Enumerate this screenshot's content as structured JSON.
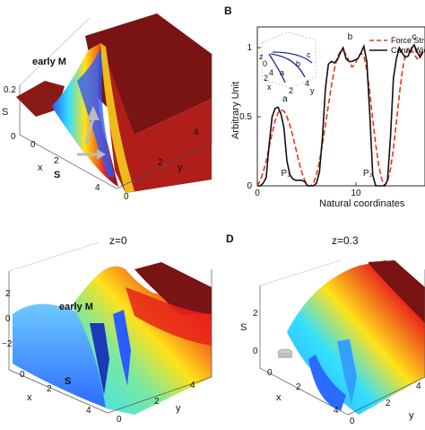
{
  "panels": {
    "a": {
      "letter": "",
      "z_label": "S",
      "x_label": "x",
      "y_label": "y",
      "z_ticks": [
        "0.2",
        "0"
      ],
      "x_ticks": [
        "0",
        "2",
        "4"
      ],
      "y_ticks": [
        "0",
        "2",
        "4"
      ],
      "annotations": {
        "early": "early M",
        "saddle": "S"
      }
    },
    "b": {
      "letter": "B",
      "x_label": "Natural coordinates",
      "y_label": "Arbitrary Unit",
      "inset": {
        "labels": [
          "z",
          "0",
          "4",
          "2",
          "x",
          "2",
          "4",
          "y",
          "a",
          "b",
          "c"
        ]
      }
    },
    "c": {
      "letter": "",
      "title": "z=0",
      "x_label": "x",
      "y_label": "y",
      "z_ticks": [
        "2",
        "0",
        "−2"
      ],
      "x_ticks": [
        "0",
        "2",
        "4"
      ],
      "y_ticks": [
        "0",
        "2",
        "4"
      ],
      "annotations": {
        "early": "early M",
        "saddle": "S"
      }
    },
    "d": {
      "letter": "D",
      "title": "z=0.3",
      "z_label": "S",
      "x_label": "x",
      "y_label": "y",
      "z_ticks": [
        "2",
        "0"
      ],
      "x_ticks": [
        "0",
        "2",
        "4"
      ],
      "y_ticks": [
        "0",
        "2",
        "4"
      ]
    }
  },
  "chart_data": [
    {
      "type": "surface",
      "panel": "A",
      "xlabel": "x",
      "ylabel": "y",
      "zlabel": "S",
      "zlim": [
        0,
        0.2
      ],
      "xlim": [
        0,
        4
      ],
      "ylim": [
        0,
        4
      ]
    },
    {
      "type": "line",
      "panel": "B",
      "xlabel": "Natural coordinates",
      "ylabel": "Arbitrary Unit",
      "xlim": [
        0,
        17
      ],
      "ylim": [
        0,
        1.15
      ],
      "xticks": [
        0,
        10
      ],
      "yticks": [
        0,
        0.5,
        1
      ],
      "legend": {
        "position": "top-right",
        "entries": [
          "Force Stre",
          "Canal Widt"
        ]
      },
      "peak_labels": [
        {
          "text": "a",
          "x": 2.8,
          "y": 0.61
        },
        {
          "text": "b",
          "x": 9.4,
          "y": 1.06
        },
        {
          "text": "c",
          "x": 15.9,
          "y": 1.06
        }
      ],
      "segment_labels": [
        {
          "text": "P₃",
          "x": 2.9,
          "y": 0.07
        },
        {
          "text": "P₂",
          "x": 11.2,
          "y": 0.07
        }
      ],
      "series": [
        {
          "name": "Force Stre",
          "color": "#e8341c",
          "style": "dashed",
          "x": [
            0,
            0.3,
            0.6,
            0.9,
            1.2,
            1.5,
            1.8,
            2.1,
            2.4,
            2.7,
            3.0,
            3.3,
            3.6,
            3.9,
            4.2,
            4.5,
            4.8,
            5.1,
            5.4,
            5.7,
            6.0,
            6.3,
            6.6,
            6.9,
            7.2,
            7.5,
            7.8,
            8.1,
            8.4,
            8.7,
            9.0,
            9.3,
            9.6,
            9.9,
            10.2,
            10.5,
            10.8,
            11.1,
            11.4,
            11.7,
            12.0,
            12.3,
            12.6,
            12.9,
            13.2,
            13.5,
            13.8,
            14.1,
            14.4,
            14.7,
            15.0,
            15.3,
            15.6,
            15.9,
            16.2,
            16.5,
            16.8
          ],
          "y": [
            0.0,
            0.04,
            0.1,
            0.18,
            0.28,
            0.38,
            0.47,
            0.53,
            0.55,
            0.54,
            0.5,
            0.44,
            0.36,
            0.27,
            0.18,
            0.1,
            0.04,
            0.0,
            0.0,
            0.02,
            0.08,
            0.18,
            0.3,
            0.44,
            0.58,
            0.72,
            0.84,
            0.93,
            0.97,
            0.98,
            0.95,
            0.9,
            0.86,
            0.88,
            0.93,
            0.96,
            0.94,
            0.84,
            0.68,
            0.48,
            0.3,
            0.15,
            0.05,
            0.0,
            0.03,
            0.12,
            0.27,
            0.46,
            0.66,
            0.83,
            0.95,
            1.0,
            0.99,
            0.95,
            0.92,
            0.95,
            0.98
          ]
        },
        {
          "name": "Canal Widt",
          "color": "#111111",
          "style": "solid",
          "x": [
            0,
            0.3,
            0.6,
            0.9,
            1.2,
            1.5,
            1.8,
            2.1,
            2.4,
            2.7,
            3.0,
            3.3,
            3.6,
            3.9,
            4.2,
            4.5,
            4.8,
            5.1,
            5.4,
            5.7,
            6.0,
            6.3,
            6.6,
            6.9,
            7.2,
            7.5,
            7.8,
            8.1,
            8.4,
            8.7,
            9.0,
            9.3,
            9.6,
            9.9,
            10.2,
            10.5,
            10.8,
            11.1,
            11.4,
            11.7,
            12.0,
            12.3,
            12.6,
            12.9,
            13.2,
            13.5,
            13.8,
            14.1,
            14.4,
            14.7,
            15.0,
            15.3,
            15.6,
            15.9,
            16.2,
            16.5,
            16.8
          ],
          "y": [
            0.0,
            0.0,
            0.02,
            0.06,
            0.3,
            0.5,
            0.56,
            0.57,
            0.52,
            0.42,
            0.18,
            0.08,
            0.05,
            0.04,
            0.04,
            0.04,
            0.03,
            0.0,
            0.0,
            0.0,
            0.02,
            0.1,
            0.35,
            0.7,
            0.88,
            0.9,
            0.89,
            0.91,
            0.96,
            1.0,
            0.92,
            0.9,
            0.9,
            0.91,
            0.92,
            0.96,
            1.01,
            0.9,
            0.52,
            0.08,
            0.0,
            0.0,
            0.0,
            0.0,
            0.04,
            0.35,
            0.78,
            0.92,
            1.0,
            0.96,
            0.93,
            0.94,
            0.99,
            1.02,
            0.97,
            0.93,
            0.97
          ]
        }
      ]
    },
    {
      "type": "surface",
      "panel": "C",
      "title": "z=0",
      "xlabel": "x",
      "ylabel": "y",
      "zlim": [
        -2,
        2
      ],
      "xlim": [
        0,
        4
      ],
      "ylim": [
        0,
        4
      ]
    },
    {
      "type": "surface",
      "panel": "D",
      "title": "z=0.3",
      "xlabel": "x",
      "ylabel": "y",
      "zlabel": "S",
      "zlim": [
        0,
        2
      ],
      "xlim": [
        0,
        4
      ],
      "ylim": [
        0,
        4
      ]
    }
  ],
  "colors": {
    "surface_top": "#7a1414",
    "jet_blue": "#2a5cff",
    "jet_cyan": "#33e0ff",
    "jet_yellow": "#ffe21a",
    "jet_red": "#e8221a",
    "force_line": "#e8341c",
    "canal_line": "#111111",
    "inset_curves": "#1a2a9a"
  }
}
